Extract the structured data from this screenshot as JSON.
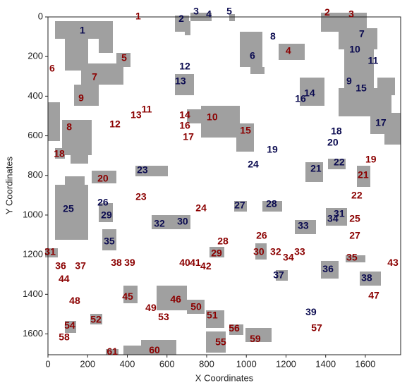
{
  "chart_data": {
    "type": "scatter",
    "x_label": "X Coordinates",
    "y_label": "Y Coordinates",
    "xlim": [
      0,
      1778
    ],
    "ylim": [
      1705,
      0
    ],
    "xticks": [
      0,
      200,
      400,
      600,
      800,
      1000,
      1200,
      1400,
      1600
    ],
    "yticks": [
      0,
      200,
      400,
      600,
      800,
      1000,
      1200,
      1400,
      1600
    ],
    "series": [
      {
        "color": "#0b0b50",
        "labels": [
          "1",
          "2",
          "3",
          "4",
          "5",
          "6",
          "7",
          "8",
          "9",
          "10",
          "11",
          "12",
          "13",
          "14",
          "15",
          "16",
          "17",
          "18",
          "19",
          "20",
          "21",
          "22",
          "23",
          "24",
          "25",
          "26",
          "27",
          "28",
          "29",
          "30",
          "31",
          "32",
          "33",
          "34",
          "35",
          "36",
          "37",
          "38",
          "39"
        ],
        "x": [
          174,
          672,
          747,
          811,
          914,
          1031,
          1582,
          1134,
          1518,
          1547,
          1639,
          690,
          668,
          1319,
          1579,
          1273,
          1678,
          1454,
          1131,
          1436,
          1351,
          1468,
          476,
          1035,
          103,
          277,
          967,
          1127,
          295,
          679,
          1468,
          562,
          1287,
          1436,
          309,
          1412,
          1163,
          1607,
          1326
        ],
        "values": [
          71,
          11,
          -25,
          -11,
          -25,
          199,
          89,
          100,
          327,
          167,
          224,
          252,
          327,
          388,
          363,
          416,
          537,
          580,
          672,
          636,
          768,
          736,
          775,
          747,
          971,
          939,
          953,
          946,
          1003,
          1035,
          996,
          1045,
          1056,
          1020,
          1134,
          1276,
          1305,
          1319,
          1493
        ]
      },
      {
        "color": "#8b0000",
        "labels": [
          "1",
          "2",
          "3",
          "4",
          "5",
          "6",
          "7",
          "8",
          "9",
          "10",
          "11",
          "12",
          "13",
          "14",
          "15",
          "16",
          "17",
          "18",
          "19",
          "20",
          "21",
          "22",
          "23",
          "24",
          "25",
          "26",
          "27",
          "28",
          "29",
          "30",
          "31",
          "32",
          "33",
          "34",
          "35",
          "36",
          "37",
          "38",
          "39",
          "40",
          "41",
          "42",
          "43",
          "44",
          "45",
          "46",
          "47",
          "48",
          "49",
          "50",
          "51",
          "52",
          "53",
          "54",
          "55",
          "56",
          "57",
          "58",
          "59",
          "60",
          "61"
        ],
        "x": [
          455,
          1408,
          1529,
          1212,
          384,
          21,
          235,
          107,
          167,
          828,
          498,
          338,
          444,
          690,
          996,
          690,
          708,
          57,
          1628,
          277,
          1589,
          1557,
          469,
          772,
          1547,
          1077,
          1547,
          882,
          850,
          1063,
          11,
          1148,
          1269,
          1212,
          1532,
          64,
          164,
          345,
          412,
          690,
          743,
          796,
          1739,
          81,
          402,
          644,
          1643,
          135,
          519,
          747,
          828,
          242,
          583,
          110,
          871,
          939,
          1355,
          82,
          1045,
          537,
          324
        ],
        "values": [
          0,
          -21,
          -11,
          174,
          210,
          263,
          306,
          558,
          412,
          508,
          469,
          544,
          498,
          498,
          576,
          551,
          608,
          693,
          722,
          818,
          800,
          903,
          910,
          967,
          1020,
          1106,
          1106,
          1134,
          1195,
          1188,
          1188,
          1188,
          1188,
          1216,
          1216,
          1259,
          1259,
          1244,
          1244,
          1244,
          1244,
          1262,
          1244,
          1326,
          1415,
          1429,
          1408,
          1436,
          1472,
          1465,
          1508,
          1529,
          1518,
          1561,
          1643,
          1575,
          1572,
          1618,
          1628,
          1685,
          1692
        ]
      }
    ]
  }
}
